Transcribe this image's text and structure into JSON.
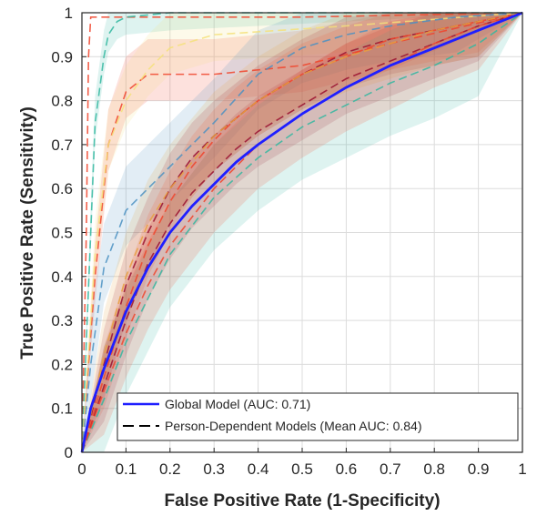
{
  "chart_data": {
    "type": "line",
    "xlabel": "False Positive Rate (1-Specificity)",
    "ylabel": "True Positive Rate (Sensitivity)",
    "xlim": [
      0,
      1
    ],
    "ylim": [
      0,
      1
    ],
    "xticks": [
      "0",
      "0.1",
      "0.2",
      "0.3",
      "0.4",
      "0.5",
      "0.6",
      "0.7",
      "0.8",
      "0.9",
      "1"
    ],
    "yticks": [
      "0",
      "0.1",
      "0.2",
      "0.3",
      "0.4",
      "0.5",
      "0.6",
      "0.7",
      "0.8",
      "0.9",
      "1"
    ],
    "grid": true,
    "legend_position": "bottom-right",
    "legend": [
      {
        "label": "Global Model (AUC: 0.71)",
        "style": "solid",
        "color": "#1f1fff"
      },
      {
        "label": "Person-Dependent Models (Mean AUC: 0.84)",
        "style": "dashed",
        "color": "#000000"
      }
    ],
    "series": [
      {
        "name": "Global Model (AUC: 0.71)",
        "style": "solid",
        "color": "#1f1fff",
        "x": [
          0,
          0.02,
          0.05,
          0.1,
          0.15,
          0.2,
          0.25,
          0.3,
          0.35,
          0.4,
          0.5,
          0.6,
          0.7,
          0.8,
          0.9,
          0.95,
          1
        ],
        "y": [
          0,
          0.1,
          0.19,
          0.32,
          0.42,
          0.5,
          0.56,
          0.61,
          0.66,
          0.7,
          0.77,
          0.83,
          0.88,
          0.92,
          0.96,
          0.98,
          1
        ]
      },
      {
        "style": "dashed",
        "color": "#f0442c",
        "x": [
          0,
          0.01,
          0.015,
          0.02,
          0.1,
          0.5,
          1
        ],
        "y": [
          0,
          0.5,
          0.9,
          0.99,
          0.99,
          0.99,
          1
        ],
        "band": [
          0.0,
          0.0
        ]
      },
      {
        "style": "dashed",
        "color": "#32b7a0",
        "x": [
          0,
          0.02,
          0.03,
          0.05,
          0.06,
          0.08,
          0.1,
          0.2,
          1
        ],
        "y": [
          0,
          0.5,
          0.75,
          0.9,
          0.95,
          0.98,
          0.99,
          1,
          1
        ],
        "band": [
          0.06,
          0.04
        ]
      },
      {
        "style": "dashed",
        "color": "#f0442c",
        "x": [
          0,
          0.03,
          0.06,
          0.1,
          0.15,
          0.2,
          0.3,
          0.5,
          0.7,
          1
        ],
        "y": [
          0,
          0.4,
          0.7,
          0.82,
          0.86,
          0.86,
          0.86,
          0.88,
          0.93,
          1
        ],
        "band": [
          0.08,
          0.06
        ]
      },
      {
        "style": "dashed",
        "color": "#f5e07a",
        "x": [
          0,
          0.03,
          0.06,
          0.1,
          0.15,
          0.2,
          0.3,
          0.45,
          0.6,
          1
        ],
        "y": [
          0,
          0.45,
          0.7,
          0.8,
          0.87,
          0.92,
          0.95,
          0.96,
          0.97,
          1
        ],
        "band": [
          0.08,
          0.06
        ]
      },
      {
        "style": "dashed",
        "color": "#4a90c2",
        "x": [
          0,
          0.02,
          0.05,
          0.1,
          0.15,
          0.2,
          0.25,
          0.3,
          0.4,
          0.5,
          0.6,
          0.7,
          0.85,
          1
        ],
        "y": [
          0,
          0.2,
          0.42,
          0.55,
          0.6,
          0.65,
          0.7,
          0.75,
          0.86,
          0.92,
          0.95,
          0.97,
          0.99,
          1
        ],
        "band": [
          0.1,
          0.08
        ]
      },
      {
        "style": "dashed",
        "color": "#9a1030",
        "x": [
          0,
          0.05,
          0.1,
          0.15,
          0.2,
          0.25,
          0.3,
          0.35,
          0.4,
          0.5,
          0.6,
          0.7,
          0.8,
          0.9,
          1
        ],
        "y": [
          0,
          0.2,
          0.38,
          0.5,
          0.6,
          0.67,
          0.72,
          0.76,
          0.8,
          0.86,
          0.91,
          0.94,
          0.96,
          0.98,
          1
        ],
        "band": [
          0.08,
          0.08
        ]
      },
      {
        "style": "dashed",
        "color": "#9a1030",
        "x": [
          0,
          0.05,
          0.1,
          0.15,
          0.2,
          0.25,
          0.3,
          0.35,
          0.4,
          0.5,
          0.6,
          0.7,
          0.8,
          0.9,
          1
        ],
        "y": [
          0,
          0.15,
          0.3,
          0.43,
          0.52,
          0.59,
          0.64,
          0.69,
          0.73,
          0.79,
          0.85,
          0.89,
          0.93,
          0.97,
          1
        ],
        "band": [
          0.08,
          0.08
        ]
      },
      {
        "style": "dashed",
        "color": "#f0442c",
        "x": [
          0,
          0.05,
          0.1,
          0.15,
          0.2,
          0.25,
          0.3,
          0.35,
          0.4,
          0.5,
          0.6,
          0.7,
          0.8,
          0.9,
          1
        ],
        "y": [
          0,
          0.17,
          0.33,
          0.47,
          0.57,
          0.65,
          0.71,
          0.76,
          0.8,
          0.86,
          0.9,
          0.94,
          0.96,
          0.98,
          1
        ],
        "band": [
          0.07,
          0.07
        ]
      },
      {
        "style": "dashed",
        "color": "#32b7a0",
        "x": [
          0,
          0.05,
          0.1,
          0.2,
          0.3,
          0.4,
          0.5,
          0.6,
          0.7,
          0.8,
          0.9,
          1
        ],
        "y": [
          0,
          0.12,
          0.25,
          0.45,
          0.58,
          0.67,
          0.74,
          0.79,
          0.84,
          0.88,
          0.93,
          1
        ],
        "band": [
          0.12,
          0.12
        ]
      },
      {
        "style": "dashed",
        "color": "#e8a040",
        "x": [
          0,
          0.05,
          0.1,
          0.15,
          0.2,
          0.3,
          0.4,
          0.5,
          0.6,
          0.7,
          0.8,
          0.9,
          1
        ],
        "y": [
          0,
          0.22,
          0.4,
          0.52,
          0.6,
          0.72,
          0.8,
          0.86,
          0.9,
          0.93,
          0.96,
          0.98,
          1
        ],
        "band": [
          0.1,
          0.08
        ]
      },
      {
        "style": "dashed",
        "color": "#f0442c",
        "x": [
          0,
          0.05,
          0.1,
          0.15,
          0.2,
          0.3,
          0.4,
          0.5,
          0.6,
          0.7,
          0.8,
          0.9,
          1
        ],
        "y": [
          0,
          0.14,
          0.27,
          0.38,
          0.47,
          0.6,
          0.7,
          0.77,
          0.83,
          0.88,
          0.93,
          0.97,
          1
        ],
        "band": [
          0.1,
          0.1
        ]
      }
    ]
  }
}
